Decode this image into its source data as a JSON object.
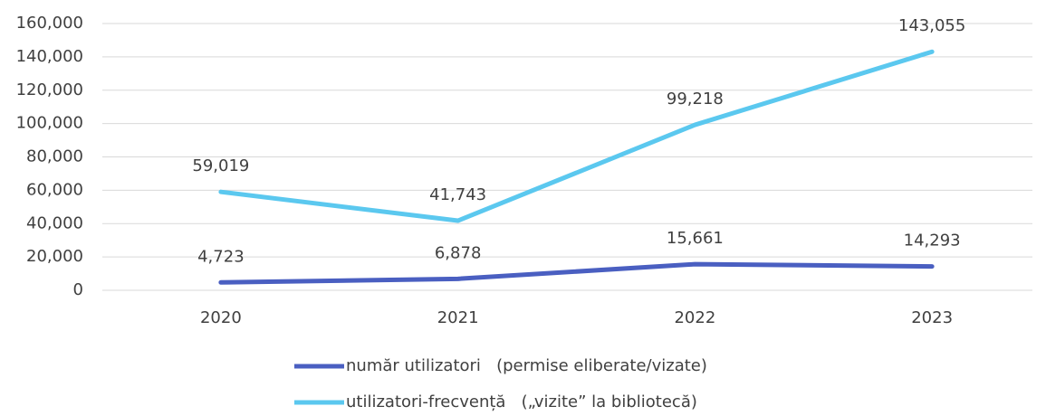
{
  "chart_data": {
    "type": "line",
    "categories": [
      "2020",
      "2021",
      "2022",
      "2023"
    ],
    "series": [
      {
        "name": "număr utilizatori   (permise eliberate/vizate)",
        "color": "#4a5fc1",
        "values": [
          4723,
          6878,
          15661,
          14293
        ],
        "value_labels": [
          "4,723",
          "6,878",
          "15,661",
          "14,293"
        ]
      },
      {
        "name": "utilizatori-frecvență   („vizite” la bibliotecă)",
        "color": "#5bc8ef",
        "values": [
          59019,
          41743,
          99218,
          143055
        ],
        "value_labels": [
          "59,019",
          "41,743",
          "99,218",
          "143,055"
        ]
      }
    ],
    "ylim": [
      0,
      160000
    ],
    "yticks": [
      0,
      {
        "value": 20000,
        "label": "20,000"
      },
      {
        "value": 40000,
        "label": "40,000"
      },
      {
        "value": 60000,
        "label": "60,000"
      },
      {
        "value": 80000,
        "label": "80,000"
      },
      {
        "value": 100000,
        "label": "100,000"
      },
      {
        "value": 120000,
        "label": "120,000"
      },
      {
        "value": 140000,
        "label": "140,000"
      },
      {
        "value": 160000,
        "label": "160,000"
      }
    ],
    "grid": true,
    "legend": "bottom"
  }
}
